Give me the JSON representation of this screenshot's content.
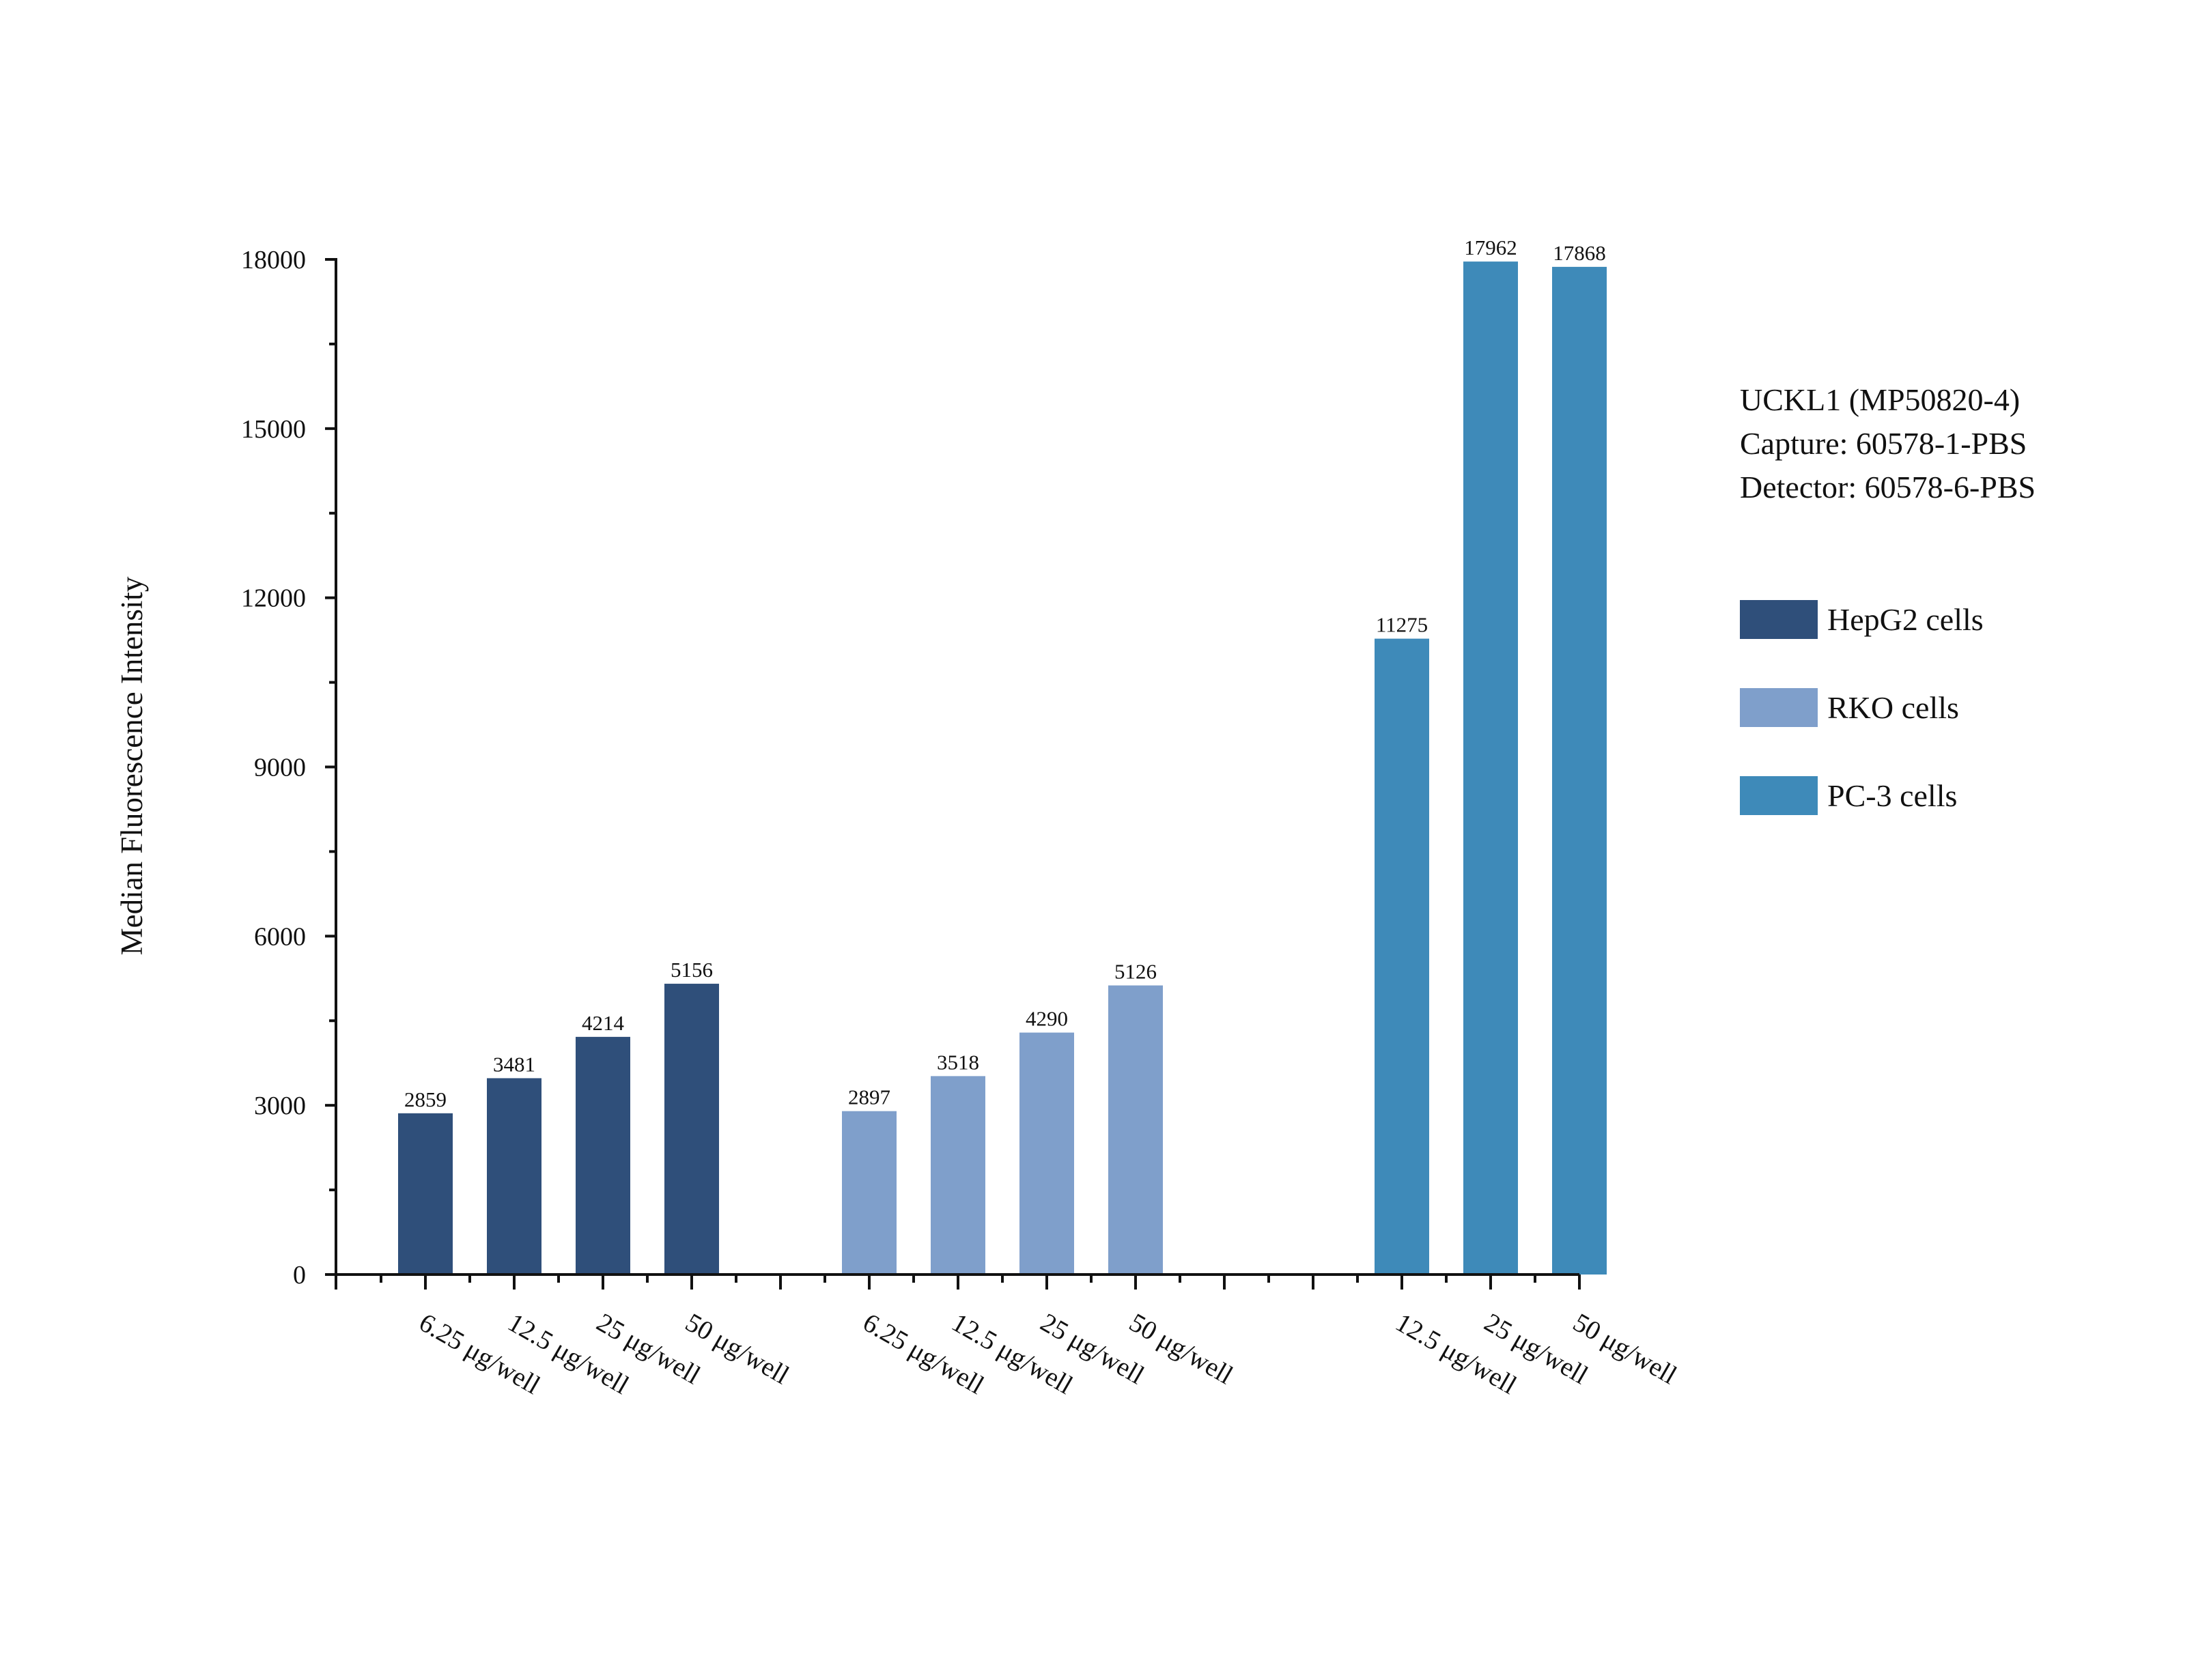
{
  "chart_data": {
    "type": "bar",
    "ylabel": "Median Fluorescence Intensity",
    "ylim": [
      0,
      18000
    ],
    "yticks": [
      0,
      3000,
      6000,
      9000,
      12000,
      15000,
      18000
    ],
    "grid": false,
    "legend_position": "right",
    "annotation": [
      "UCKL1 (MP50820-4)",
      "Capture: 60578-1-PBS",
      "Detector: 60578-6-PBS"
    ],
    "series": [
      {
        "name": "HepG2 cells",
        "color": "#2f4f7a",
        "categories": [
          "6.25 μg/well",
          "12.5 μg/well",
          "25 μg/well",
          "50 μg/well"
        ],
        "values": [
          2859,
          3481,
          4214,
          5156
        ]
      },
      {
        "name": "RKO cells",
        "color": "#7f9fcb",
        "categories": [
          "6.25 μg/well",
          "12.5 μg/well",
          "25 μg/well",
          "50 μg/well"
        ],
        "values": [
          2897,
          3518,
          4290,
          5126
        ]
      },
      {
        "name": "PC-3 cells",
        "color": "#3e8ab9",
        "categories": [
          "12.5 μg/well",
          "25 μg/well",
          "50 μg/well"
        ],
        "values": [
          11275,
          17962,
          17868
        ]
      }
    ]
  }
}
